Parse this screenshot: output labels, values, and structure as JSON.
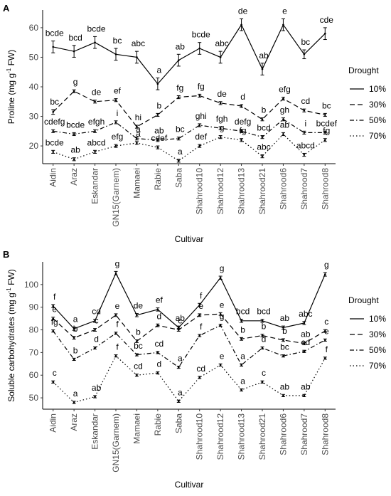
{
  "chart_data": [
    {
      "type": "line",
      "panel": "A",
      "xlabel": "Cultivar",
      "ylabel": "Proline (mg g",
      "ylabel_sup": "-1",
      "ylabel_tail": " FW)",
      "ylim": [
        14,
        66
      ],
      "yticks": [
        20,
        30,
        40,
        50,
        60
      ],
      "grid": false,
      "legend_title": "Drought",
      "legend_position": "right",
      "categories": [
        "Aidin",
        "Araz",
        "Eskandar",
        "GN15(Garnem)",
        "Mamaei",
        "Rabie",
        "Saba",
        "Shahrood10",
        "Shahrood12",
        "Shahrood13",
        "Shahrood21",
        "Shahrood6",
        "Shahrood7",
        "Shahrood8"
      ],
      "series": [
        {
          "name": "10%",
          "dash": "solid",
          "values": [
            53.5,
            52,
            55,
            51,
            50,
            41,
            49,
            53,
            50,
            61,
            46,
            61,
            51,
            58
          ],
          "errors": [
            2,
            2,
            2,
            2,
            2,
            2,
            2,
            2,
            2,
            2,
            2,
            2,
            1.5,
            2
          ],
          "labels": [
            "bcde",
            "bcd",
            "bcde",
            "bc",
            "abc",
            "a",
            "ab",
            "bcde",
            "abc",
            "de",
            "ab",
            "e",
            "bc",
            "cde"
          ]
        },
        {
          "name": "30%",
          "dash": "dashed",
          "values": [
            31.5,
            38.5,
            35,
            35.5,
            26.5,
            30.5,
            36.5,
            37,
            34.5,
            33.5,
            29,
            36,
            32,
            30.5
          ],
          "errors": [
            0.8,
            0.5,
            0.5,
            0.5,
            0.5,
            0.5,
            0.5,
            0.5,
            0.5,
            0.5,
            0.5,
            0.5,
            0.5,
            0.5
          ],
          "labels": [
            "bc",
            "g",
            "de",
            "ef",
            "hi",
            "b",
            "fg",
            "fg",
            "de",
            "d",
            "b",
            "efg",
            "cd",
            "bc"
          ]
        },
        {
          "name": "50%",
          "dash": "dashdot",
          "values": [
            25,
            24,
            25,
            28,
            22.5,
            22,
            22.5,
            27,
            26,
            25,
            23,
            29,
            24.5,
            24.5
          ],
          "errors": [
            0.5,
            0.5,
            0.5,
            0.5,
            0.5,
            0.5,
            0.5,
            0.5,
            0.5,
            0.5,
            0.5,
            0.5,
            0.5,
            0.5
          ],
          "labels": [
            "cdefg",
            "bcde",
            "efgh",
            "i",
            "a",
            "ab",
            "bc",
            "ghi",
            "fgh",
            "defg",
            "bcd",
            "gh",
            "i",
            "bcdef"
          ]
        },
        {
          "name": "70%",
          "dash": "dotted",
          "values": [
            18,
            15.5,
            18,
            20,
            21,
            19.5,
            15,
            20,
            23,
            22,
            16.5,
            24,
            17,
            22
          ],
          "errors": [
            0.5,
            0.5,
            0.5,
            0.5,
            0.5,
            0.5,
            0.5,
            0.5,
            0.5,
            0.5,
            0.5,
            0.5,
            0.5,
            0.5
          ],
          "labels": [
            "bcde",
            "ab",
            "abcd",
            "efg",
            "a",
            "cdef",
            "a",
            "def",
            "g",
            "fg",
            "abc",
            "ab",
            "abcd",
            "fg"
          ]
        }
      ]
    },
    {
      "type": "line",
      "panel": "B",
      "xlabel": "Cultivar",
      "ylabel": "Soluble carbohydrates (mg g",
      "ylabel_sup": "-1",
      "ylabel_tail": " FW)",
      "ylim": [
        45,
        110
      ],
      "yticks": [
        50,
        60,
        70,
        80,
        90,
        100
      ],
      "grid": false,
      "legend_title": "Drought",
      "legend_position": "right",
      "categories": [
        "Aidin",
        "Araz",
        "Eskandar",
        "GN15(Garnem)",
        "Mamaei",
        "Rabie",
        "Saba",
        "Shahrood10",
        "Shahrood12",
        "Shahrood13",
        "Shahrood21",
        "Shahrood6",
        "Shahrood7",
        "Shahrood8"
      ],
      "series": [
        {
          "name": "10%",
          "dash": "solid",
          "values": [
            90.5,
            80.5,
            84,
            105,
            86.5,
            89,
            81,
            91,
            103,
            84,
            84,
            81,
            83,
            104.5
          ],
          "errors": [
            0.7,
            0.7,
            0.7,
            0.8,
            0.7,
            0.7,
            0.7,
            0.7,
            0.7,
            0.7,
            0.7,
            0.7,
            0.7,
            0.8
          ],
          "labels": [
            "f",
            "a",
            "cd",
            "g",
            "de",
            "ef",
            "ab",
            "f",
            "g",
            "bcd",
            "bcd",
            "ab",
            "abc",
            "g"
          ]
        },
        {
          "name": "30%",
          "dash": "dashed",
          "values": [
            85,
            76.5,
            80,
            86.5,
            75,
            82,
            80,
            86.5,
            87,
            76,
            77.5,
            75.5,
            74,
            79.5
          ],
          "errors": [
            0.6,
            0.6,
            0.6,
            0.6,
            0.6,
            0.6,
            0.6,
            0.6,
            0.6,
            0.6,
            0.6,
            0.6,
            0.6,
            0.6
          ],
          "labels": [
            "e",
            "b",
            "c",
            "e",
            "b",
            "d",
            "c",
            "e",
            "e",
            "b",
            "b",
            "b",
            "ab",
            "c"
          ]
        },
        {
          "name": "50%",
          "dash": "dashdot",
          "values": [
            79.5,
            67,
            72,
            78.5,
            69,
            70,
            63.5,
            77.5,
            82,
            64.5,
            72,
            68.5,
            70.5,
            75.5
          ],
          "errors": [
            0.5,
            0.5,
            0.5,
            0.5,
            0.5,
            0.5,
            0.5,
            0.5,
            0.5,
            0.5,
            0.5,
            0.5,
            0.5,
            0.5
          ],
          "labels": [
            "fg",
            "b",
            "d",
            "f",
            "bc",
            "cd",
            "a",
            "f",
            "g",
            "a",
            "d",
            "bc",
            "cd",
            "e"
          ]
        },
        {
          "name": "70%",
          "dash": "dotted",
          "values": [
            57,
            48,
            50.5,
            68.5,
            60,
            61,
            48.5,
            59,
            64.5,
            53.5,
            57,
            51,
            51,
            67.5
          ],
          "errors": [
            0.5,
            0.5,
            0.5,
            0.5,
            0.5,
            0.5,
            0.5,
            0.5,
            0.5,
            0.5,
            0.5,
            0.5,
            0.5,
            0.5
          ],
          "labels": [
            "c",
            "a",
            "ab",
            "f",
            "cd",
            "d",
            "a",
            "cd",
            "e",
            "a",
            "c",
            "ab",
            "ab",
            "f"
          ]
        }
      ]
    }
  ]
}
